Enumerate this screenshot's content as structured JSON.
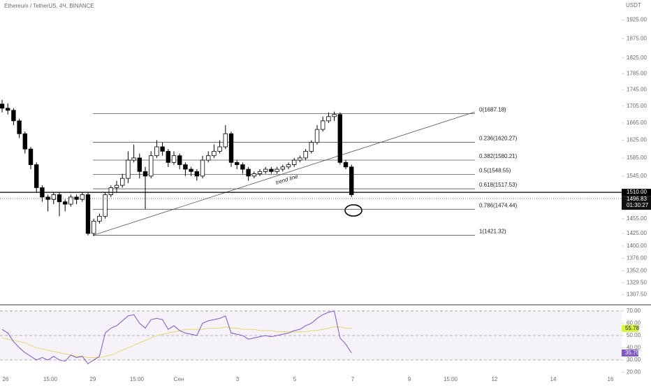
{
  "chart_data": {
    "type": "candlestick",
    "title": "Ethereum / TetherUS, 4Ч, BINANCE",
    "currency": "USDT",
    "log_scale": true,
    "ylim": [
      1290,
      1980
    ],
    "yticks": [
      {
        "value": 1925,
        "label": "1925.00"
      },
      {
        "value": 1875,
        "label": "1875.00"
      },
      {
        "value": 1825,
        "label": "1825.00"
      },
      {
        "value": 1785,
        "label": "1785.00"
      },
      {
        "value": 1745,
        "label": "1745.00"
      },
      {
        "value": 1705,
        "label": "1705.00"
      },
      {
        "value": 1665,
        "label": "1665.00"
      },
      {
        "value": 1625,
        "label": "1625.00"
      },
      {
        "value": 1585,
        "label": "1585.00"
      },
      {
        "value": 1545,
        "label": "1545.00"
      },
      {
        "value": 1455,
        "label": "1455.00"
      },
      {
        "value": 1425,
        "label": "1425.00"
      },
      {
        "value": 1400,
        "label": "1400.00"
      },
      {
        "value": 1376,
        "label": "1376.00"
      },
      {
        "value": 1352,
        "label": "1352.00"
      },
      {
        "value": 1329.5,
        "label": "1329.50"
      },
      {
        "value": 1307.5,
        "label": "1307.50"
      }
    ],
    "x_labels": [
      "26",
      "15:00",
      "29",
      "15:00",
      "Сен",
      "3",
      "5",
      "7",
      "9",
      "15:00",
      "12",
      "14",
      "16"
    ],
    "up_color": "#ffffff",
    "down_color": "#000000",
    "open": [
      1710,
      1700,
      1695,
      1670,
      1640,
      1605,
      1570,
      1520,
      1500,
      1495,
      1505,
      1490,
      1485,
      1500,
      1495,
      1505,
      1425,
      1450,
      1460,
      1505,
      1520,
      1525,
      1540,
      1580,
      1585,
      1555,
      1545,
      1590,
      1610,
      1600,
      1575,
      1590,
      1570,
      1560,
      1555,
      1545,
      1580,
      1590,
      1600,
      1610,
      1640,
      1575,
      1570,
      1560,
      1545,
      1550,
      1555,
      1560,
      1555,
      1560,
      1565,
      1570,
      1580,
      1585,
      1600,
      1620,
      1650,
      1670,
      1680,
      1685,
      1575,
      1565
    ],
    "high": [
      1720,
      1712,
      1700,
      1675,
      1645,
      1610,
      1575,
      1525,
      1505,
      1510,
      1510,
      1495,
      1505,
      1505,
      1510,
      1510,
      1455,
      1465,
      1510,
      1525,
      1535,
      1550,
      1600,
      1615,
      1595,
      1565,
      1600,
      1625,
      1620,
      1605,
      1600,
      1595,
      1575,
      1565,
      1560,
      1590,
      1600,
      1615,
      1625,
      1660,
      1645,
      1580,
      1575,
      1565,
      1555,
      1560,
      1565,
      1565,
      1565,
      1570,
      1575,
      1585,
      1590,
      1605,
      1625,
      1660,
      1680,
      1690,
      1692,
      1690,
      1580,
      1570
    ],
    "low": [
      1690,
      1685,
      1660,
      1630,
      1595,
      1560,
      1510,
      1490,
      1470,
      1485,
      1460,
      1470,
      1480,
      1485,
      1490,
      1421,
      1420,
      1445,
      1455,
      1500,
      1510,
      1520,
      1530,
      1575,
      1540,
      1475,
      1540,
      1585,
      1590,
      1565,
      1570,
      1560,
      1545,
      1545,
      1535,
      1540,
      1575,
      1585,
      1595,
      1605,
      1565,
      1560,
      1550,
      1535,
      1540,
      1545,
      1550,
      1550,
      1550,
      1555,
      1560,
      1565,
      1575,
      1580,
      1595,
      1615,
      1645,
      1665,
      1670,
      1570,
      1560,
      1500
    ],
    "close": [
      1700,
      1695,
      1670,
      1640,
      1605,
      1570,
      1520,
      1500,
      1495,
      1505,
      1490,
      1485,
      1500,
      1495,
      1505,
      1425,
      1450,
      1460,
      1505,
      1520,
      1525,
      1540,
      1580,
      1585,
      1555,
      1545,
      1590,
      1610,
      1600,
      1575,
      1590,
      1570,
      1560,
      1555,
      1545,
      1580,
      1590,
      1600,
      1610,
      1640,
      1575,
      1570,
      1560,
      1545,
      1550,
      1555,
      1560,
      1555,
      1560,
      1565,
      1570,
      1580,
      1585,
      1600,
      1620,
      1650,
      1670,
      1680,
      1685,
      1575,
      1565,
      1505
    ],
    "fib_levels": [
      {
        "label": "0(1687.18)",
        "value": 1687.18
      },
      {
        "label": "0.236(1620.27)",
        "value": 1620.27
      },
      {
        "label": "0.382(1580.21)",
        "value": 1580.21
      },
      {
        "label": "0.5(1548.55)",
        "value": 1548.55
      },
      {
        "label": "0.618(1517.53)",
        "value": 1517.53
      },
      {
        "label": "0.786(1474.44)",
        "value": 1474.44
      },
      {
        "label": "1(1421.32)",
        "value": 1421.32
      }
    ],
    "trend_line_label": "trend line",
    "price_labels": [
      {
        "value": 1510,
        "label": "1510.00"
      },
      {
        "value": 1496.83,
        "label": "1496.83"
      }
    ],
    "countdown": "01:30:27",
    "rsi": {
      "color": "#7e57c2",
      "ma_color": "#e6d56c",
      "ylim": [
        10,
        74.5
      ],
      "yticks": [
        {
          "value": 70,
          "label": "70.00"
        },
        {
          "value": 60,
          "label": "60.00"
        },
        {
          "value": 50,
          "label": "50.00"
        },
        {
          "value": 40,
          "label": "40.00"
        },
        {
          "value": 30,
          "label": "30.00"
        },
        {
          "value": 20,
          "label": "20.00"
        }
      ],
      "bands": [
        70,
        50,
        30
      ],
      "values": [
        55,
        52,
        45,
        40,
        36,
        33,
        30,
        32,
        30,
        33,
        30,
        29,
        34,
        32,
        33,
        27,
        30,
        33,
        52,
        56,
        58,
        62,
        66,
        67,
        60,
        56,
        63,
        64,
        63,
        55,
        58,
        54,
        52,
        51,
        50,
        60,
        62,
        63,
        64,
        66,
        52,
        51,
        50,
        47,
        48,
        49,
        50,
        49,
        50,
        51,
        52,
        54,
        55,
        58,
        60,
        64,
        67,
        69,
        70,
        48,
        43,
        35.75
      ],
      "ma_values": [
        48,
        47,
        46,
        45,
        44,
        42,
        40,
        39,
        38,
        37,
        36,
        35,
        34,
        33,
        33,
        32,
        32,
        32,
        33,
        34,
        36,
        38,
        40,
        42,
        44,
        46,
        48,
        50,
        51,
        52,
        53,
        54,
        55,
        55,
        55,
        55,
        56,
        56,
        56,
        57,
        56,
        56,
        55,
        55,
        55,
        54,
        54,
        54,
        53,
        53,
        53,
        53,
        53,
        53,
        54,
        54,
        55,
        56,
        57,
        57,
        56,
        55.78
      ]
    }
  }
}
